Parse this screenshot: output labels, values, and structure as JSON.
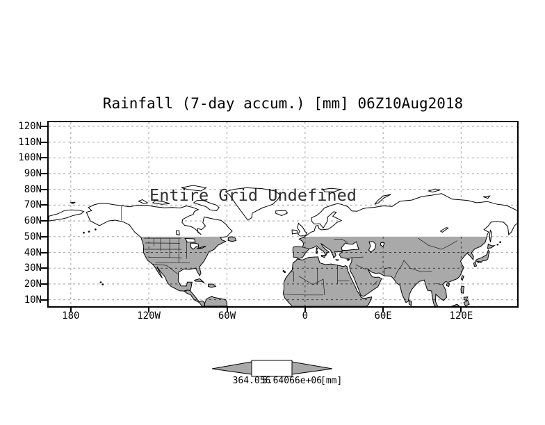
{
  "chart_data": {
    "type": "map",
    "title": "Rainfall (7-day accum.) [mm] 06Z10Aug2018",
    "annotation": "Entire Grid Undefined",
    "x_axis": {
      "tick_labels": [
        "180",
        "120W",
        "60W",
        "0",
        "60E",
        "120E"
      ],
      "tick_lons": [
        -180,
        -120,
        -60,
        0,
        60,
        120
      ]
    },
    "y_axis": {
      "tick_labels": [
        "120N",
        "110N",
        "100N",
        "90N",
        "80N",
        "70N",
        "60N",
        "50N",
        "40N",
        "30N",
        "20N",
        "10N"
      ],
      "tick_lats": [
        120,
        110,
        100,
        90,
        80,
        70,
        60,
        50,
        40,
        30,
        20,
        10
      ]
    },
    "lon_range": [
      -197,
      163
    ],
    "lat_range": [
      5.9,
      122.6
    ],
    "grid": {
      "style": "dashed",
      "on": true
    },
    "shading": {
      "land_shaded_below_lat": 50,
      "shade_color": "#a9a9a9"
    },
    "colorbar": {
      "shape": "double-arrow",
      "segment_colors": [
        "#a9a9a9",
        "#ffffff",
        "#a9a9a9"
      ],
      "edge_labels": [
        "364.056",
        "5.64066e+06"
      ],
      "units_label": "[mm]"
    }
  },
  "colors": {
    "background": "#ffffff",
    "frame": "#000000",
    "coastline": "#000000",
    "grid_gray": "#b0b0b0",
    "grid_dark": "#3a3a3a",
    "land_shade": "#a9a9a9",
    "annotation_text": "#2e2e2e"
  }
}
